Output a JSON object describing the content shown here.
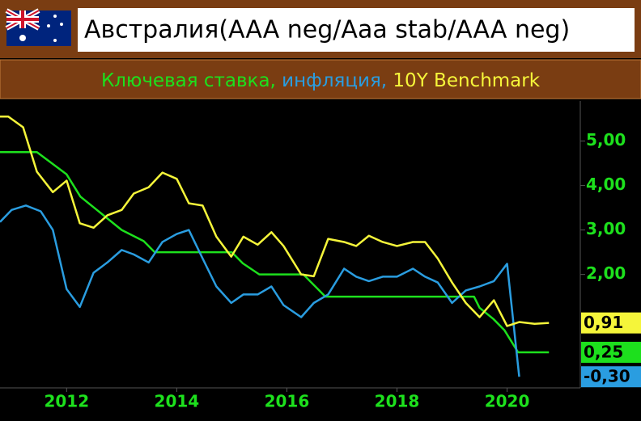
{
  "chart_data": {
    "type": "line",
    "title": "Австралия(AAA neg/Aaa stab/AAA neg)",
    "xlim": [
      2010.79,
      2021.3
    ],
    "xticks": [
      2012,
      2014,
      2016,
      2018,
      2020
    ],
    "ylim": [
      -0.55,
      5.9
    ],
    "yticks": [
      {
        "value": 2,
        "label": "2,00"
      },
      {
        "value": 3,
        "label": "3,00"
      },
      {
        "value": 4,
        "label": "4,00"
      },
      {
        "value": 5,
        "label": "5,00"
      }
    ],
    "series": [
      {
        "name": "Ключевая ставка,",
        "color": "#1de01d",
        "x": [
          2010.79,
          2011.46,
          2012.0,
          2012.25,
          2012.5,
          2012.75,
          2013.0,
          2013.4,
          2013.6,
          2015.0,
          2015.2,
          2015.5,
          2016.3,
          2016.5,
          2016.7,
          2019.4,
          2019.5,
          2019.75,
          2019.95,
          2020.2,
          2020.76
        ],
        "values": [
          4.75,
          4.75,
          4.25,
          3.75,
          3.5,
          3.25,
          3.0,
          2.75,
          2.5,
          2.5,
          2.25,
          2.0,
          2.0,
          1.75,
          1.5,
          1.5,
          1.25,
          1.0,
          0.75,
          0.25,
          0.25
        ],
        "end_label": {
          "value": 0.25,
          "label": "0,25"
        }
      },
      {
        "name": "инфляция,",
        "color": "#2a9de0",
        "x": [
          2010.79,
          2011.0,
          2011.26,
          2011.53,
          2011.75,
          2012.0,
          2012.24,
          2012.49,
          2012.74,
          2013.0,
          2013.22,
          2013.49,
          2013.74,
          2014.0,
          2014.22,
          2014.47,
          2014.72,
          2014.99,
          2015.21,
          2015.47,
          2015.72,
          2015.94,
          2016.26,
          2016.49,
          2016.75,
          2017.04,
          2017.26,
          2017.49,
          2017.74,
          2018.0,
          2018.29,
          2018.51,
          2018.74,
          2019.0,
          2019.25,
          2019.5,
          2019.76,
          2020.0,
          2020.22
        ],
        "values": [
          3.18,
          3.45,
          3.55,
          3.42,
          3.0,
          1.67,
          1.27,
          2.04,
          2.27,
          2.55,
          2.45,
          2.27,
          2.73,
          2.91,
          3.0,
          2.36,
          1.73,
          1.36,
          1.55,
          1.55,
          1.73,
          1.31,
          1.04,
          1.36,
          1.55,
          2.13,
          1.95,
          1.85,
          1.95,
          1.95,
          2.13,
          1.95,
          1.82,
          1.36,
          1.64,
          1.73,
          1.85,
          2.24,
          -0.3
        ],
        "end_label": {
          "value": -0.3,
          "label": "-0,30"
        }
      },
      {
        "name": "10Y Benchmark",
        "color": "#f5f53a",
        "x": [
          2010.79,
          2010.94,
          2011.21,
          2011.46,
          2011.75,
          2012.0,
          2012.24,
          2012.49,
          2012.74,
          2013.0,
          2013.22,
          2013.49,
          2013.74,
          2014.0,
          2014.22,
          2014.47,
          2014.72,
          2014.99,
          2015.21,
          2015.47,
          2015.72,
          2015.94,
          2016.26,
          2016.49,
          2016.75,
          2017.04,
          2017.26,
          2017.49,
          2017.74,
          2018.0,
          2018.29,
          2018.51,
          2018.74,
          2019.0,
          2019.25,
          2019.5,
          2019.76,
          2020.0,
          2020.22,
          2020.5,
          2020.76
        ],
        "values": [
          5.55,
          5.55,
          5.31,
          4.31,
          3.85,
          4.11,
          3.15,
          3.05,
          3.33,
          3.45,
          3.82,
          3.96,
          4.29,
          4.15,
          3.6,
          3.55,
          2.85,
          2.4,
          2.85,
          2.67,
          2.95,
          2.64,
          2.0,
          1.96,
          2.8,
          2.73,
          2.64,
          2.87,
          2.73,
          2.64,
          2.73,
          2.73,
          2.36,
          1.82,
          1.36,
          1.04,
          1.42,
          0.84,
          0.93,
          0.89,
          0.91
        ],
        "end_label": {
          "value": 0.91,
          "label": "0,91"
        }
      }
    ]
  }
}
